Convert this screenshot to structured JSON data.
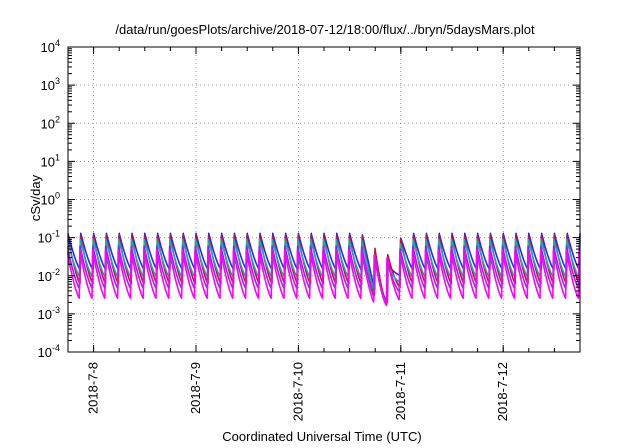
{
  "chart_data": {
    "type": "line",
    "title": "/data/run/goesPlots/archive/2018-07-12/18:00/flux/../bryn/5daysMars.plot",
    "xlabel": "Coordinated Universal Time (UTC)",
    "ylabel": "cSv/day",
    "yscale": "log",
    "ylim": [
      0.0001,
      10000
    ],
    "y_ticks": [
      {
        "base": "10",
        "exp": "-4"
      },
      {
        "base": "10",
        "exp": "-3"
      },
      {
        "base": "10",
        "exp": "-2"
      },
      {
        "base": "10",
        "exp": "-1"
      },
      {
        "base": "10",
        "exp": "0"
      },
      {
        "base": "10",
        "exp": "1"
      },
      {
        "base": "10",
        "exp": "2"
      },
      {
        "base": "10",
        "exp": "3"
      },
      {
        "base": "10",
        "exp": "4"
      }
    ],
    "xlim": [
      "2018-07-07T18:00",
      "2018-07-12T18:00"
    ],
    "x_ticks": [
      "2018-7-8",
      "2018-7-9",
      "2018-7-10",
      "2018-7-11",
      "2018-7-12"
    ],
    "grid": true,
    "legend": "none",
    "pattern": {
      "peaks_per_day": 8,
      "dropout_date": "2018-07-10T20:00",
      "dropout_trough": 0.0015
    },
    "series": [
      {
        "color": "#2a2aee",
        "peak": 0.13,
        "trough": 0.014
      },
      {
        "color": "#c8102e",
        "peak": 0.11,
        "trough": 0.006
      },
      {
        "color": "#1fa8a8",
        "peak": 0.09,
        "trough": 0.009
      },
      {
        "color": "#8a2be2",
        "peak": 0.06,
        "trough": 0.0045
      },
      {
        "color": "#ff00ff",
        "peak": 0.045,
        "trough": 0.0025
      }
    ]
  }
}
